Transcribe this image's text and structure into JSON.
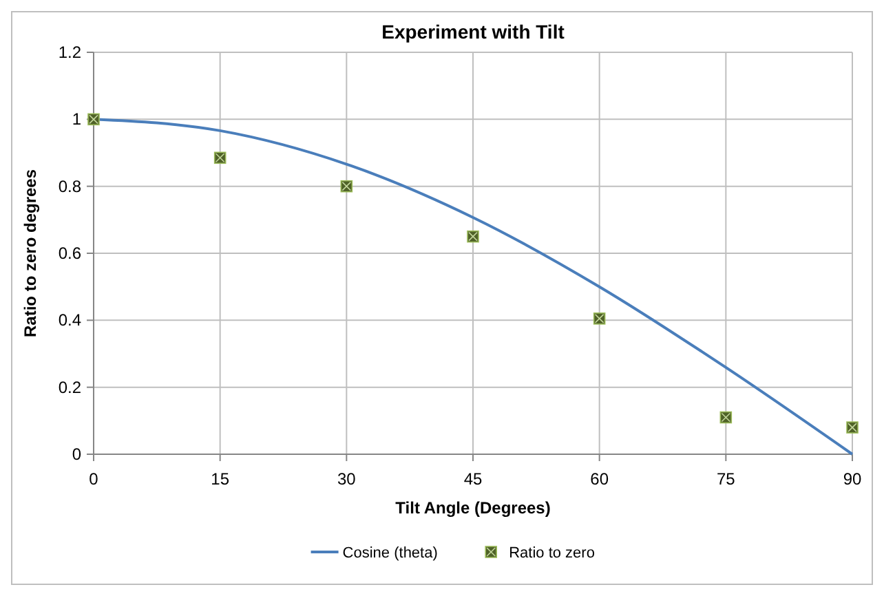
{
  "chart_data": {
    "type": "line",
    "title": "Experiment with Tilt",
    "xlabel": "Tilt Angle (Degrees)",
    "ylabel": "Ratio to zero degrees",
    "x": [
      0,
      15,
      30,
      45,
      60,
      75,
      90
    ],
    "series": [
      {
        "name": "Cosine (theta)",
        "color": "#4a7ebb",
        "marker": "none",
        "values": [
          1,
          0.966,
          0.866,
          0.707,
          0.5,
          0.259,
          0
        ]
      },
      {
        "name": "Ratio to zero",
        "type": "scatter",
        "color": "#4f6228",
        "marker": "square",
        "values": [
          1,
          0.885,
          0.8,
          0.65,
          0.405,
          0.11,
          0.08
        ]
      }
    ],
    "xlim": [
      0,
      90
    ],
    "xticks": [
      0,
      15,
      30,
      45,
      60,
      75,
      90
    ],
    "ylim": [
      0,
      1.2
    ],
    "yticks": [
      0,
      0.2,
      0.4,
      0.6,
      0.8,
      1,
      1.2
    ],
    "grid": true,
    "legend": "bottom"
  }
}
